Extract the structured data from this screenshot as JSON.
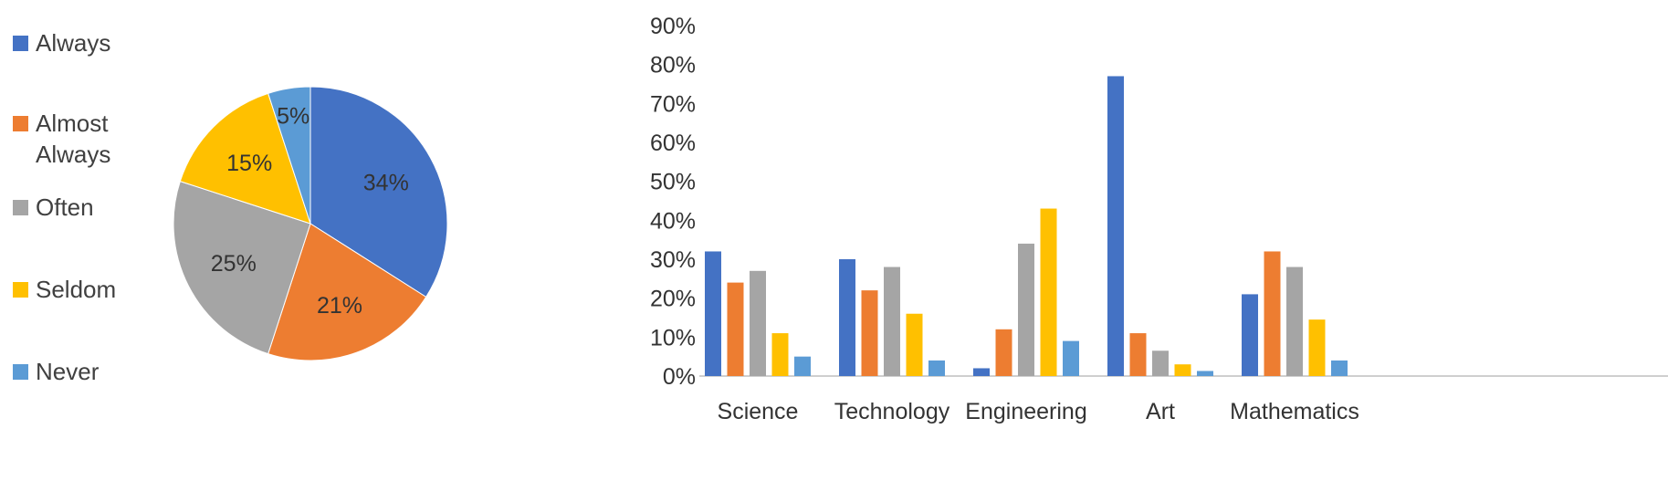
{
  "chart_data": [
    {
      "type": "pie",
      "title": "",
      "categories": [
        "Always",
        "Almost Always",
        "Often",
        "Seldom",
        "Never"
      ],
      "values": [
        34,
        21,
        25,
        15,
        5
      ],
      "value_labels": [
        "34%",
        "21%",
        "25%",
        "15%",
        "5%"
      ],
      "colors": [
        "#4472c4",
        "#ed7d31",
        "#a5a5a5",
        "#ffc000",
        "#5b9bd5"
      ],
      "legend": "left"
    },
    {
      "type": "bar",
      "title": "",
      "xlabel": "",
      "ylabel": "",
      "categories": [
        "Science",
        "Technology",
        "Engineering",
        "Art",
        "Mathematics"
      ],
      "series": [
        {
          "name": "Always",
          "values": [
            32,
            30,
            2,
            77,
            21
          ],
          "color": "#4472c4"
        },
        {
          "name": "Almost Always",
          "values": [
            24,
            22,
            12,
            11,
            32
          ],
          "color": "#ed7d31"
        },
        {
          "name": "Often",
          "values": [
            27,
            28,
            34,
            6.5,
            28
          ],
          "color": "#a5a5a5"
        },
        {
          "name": "Seldom",
          "values": [
            11,
            16,
            43,
            3,
            14.5
          ],
          "color": "#ffc000"
        },
        {
          "name": "Never",
          "values": [
            5,
            4,
            9,
            1.3,
            4
          ],
          "color": "#5b9bd5"
        }
      ],
      "ylim": [
        0,
        90
      ],
      "yticks": [
        "0%",
        "10%",
        "20%",
        "30%",
        "40%",
        "50%",
        "60%",
        "70%",
        "80%",
        "90%"
      ],
      "grid": false
    }
  ]
}
